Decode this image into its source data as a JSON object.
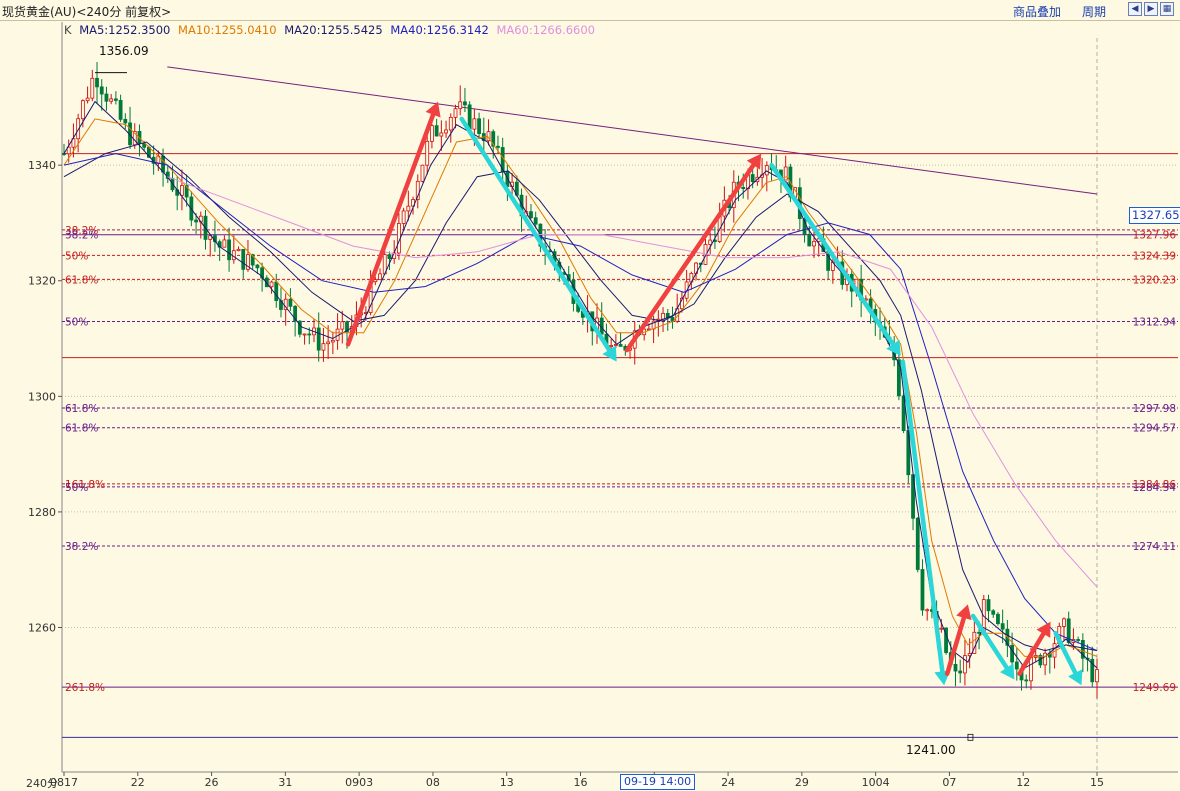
{
  "header": {
    "title": "现货黄金(AU)<240分 前复权>",
    "overlay_button": "商品叠加",
    "period_button": "周期",
    "nav_icons": [
      "arrow-left-icon",
      "arrow-right-icon",
      "split-icon"
    ]
  },
  "legend": {
    "k_label": "K",
    "items": [
      {
        "text": "MA5:1252.3500",
        "color": "#1a1a6e"
      },
      {
        "text": "MA10:1255.0410",
        "color": "#e07a00"
      },
      {
        "text": "MA20:1255.5425",
        "color": "#1a1a6e"
      },
      {
        "text": "MA40:1256.3142",
        "color": "#2020c0"
      },
      {
        "text": "MA60:1266.6600",
        "color": "#e090e0"
      }
    ]
  },
  "annotations": {
    "high": "1356.09",
    "low": "1241.00",
    "current_price": "1327.65",
    "period_label": "240分",
    "cursor_time": "09-19 14:00"
  },
  "chart_data": {
    "type": "candlestick",
    "ylim": [
      1235,
      1362
    ],
    "y_ticks": [
      1260,
      1280,
      1300,
      1320,
      1340
    ],
    "x_tick_labels": [
      "0817",
      "22",
      "26",
      "31",
      "0903",
      "08",
      "13",
      "16",
      "19",
      "24",
      "29",
      "1004",
      "07",
      "12",
      "15"
    ],
    "horizontal_lines": [
      {
        "price": 1342.0,
        "color": "#c81e1e",
        "style": "solid"
      },
      {
        "price": 1328.8,
        "color": "#b01e50",
        "style": "dashed"
      },
      {
        "price": 1327.96,
        "color": "#6a1e8a",
        "style": "solid"
      },
      {
        "price": 1324.39,
        "color": "#c81e1e",
        "style": "dashed"
      },
      {
        "price": 1320.23,
        "color": "#c81e1e",
        "style": "dashed"
      },
      {
        "price": 1312.94,
        "color": "#6a1e8a",
        "style": "dashed"
      },
      {
        "price": 1306.7,
        "color": "#c81e1e",
        "style": "solid"
      },
      {
        "price": 1297.98,
        "color": "#6a1e8a",
        "style": "dashed"
      },
      {
        "price": 1294.57,
        "color": "#6a1e8a",
        "style": "dashed"
      },
      {
        "price": 1284.86,
        "color": "#c81e1e",
        "style": "dashed"
      },
      {
        "price": 1284.34,
        "color": "#6a1e8a",
        "style": "dashed"
      },
      {
        "price": 1274.11,
        "color": "#6a1e8a",
        "style": "dashed"
      },
      {
        "price": 1249.69,
        "color": "#6a1e8a",
        "style": "solid"
      },
      {
        "price": 1241.0,
        "color": "#3a2a9a",
        "style": "solid"
      }
    ],
    "fib_labels_left": [
      {
        "text": "38.2%",
        "price": 1328.8,
        "color": "#c81e1e"
      },
      {
        "text": "38.2%",
        "price": 1327.96,
        "color": "#6a1e8a"
      },
      {
        "text": "50%",
        "price": 1324.39,
        "color": "#c81e1e"
      },
      {
        "text": "61.8%",
        "price": 1320.23,
        "color": "#c81e1e"
      },
      {
        "text": "50%",
        "price": 1312.94,
        "color": "#6a1e8a"
      },
      {
        "text": "61.8%",
        "price": 1297.98,
        "color": "#6a1e8a"
      },
      {
        "text": "61.8%",
        "price": 1294.57,
        "color": "#6a1e8a"
      },
      {
        "text": "161.8%",
        "price": 1284.86,
        "color": "#c81e1e"
      },
      {
        "text": "50%",
        "price": 1284.34,
        "color": "#6a1e8a"
      },
      {
        "text": "38.2%",
        "price": 1274.11,
        "color": "#6a1e8a"
      },
      {
        "text": "261.8%",
        "price": 1249.69,
        "color": "#c81e1e"
      }
    ],
    "price_labels_right": [
      {
        "text": "1327.96",
        "price": 1327.96,
        "color": "#c81e1e"
      },
      {
        "text": "1324.39",
        "price": 1324.39,
        "color": "#c81e1e"
      },
      {
        "text": "1320.23",
        "price": 1320.23,
        "color": "#c81e1e"
      },
      {
        "text": "1312.94",
        "price": 1312.94,
        "color": "#6a1e8a"
      },
      {
        "text": "1297.98",
        "price": 1297.98,
        "color": "#6a1e8a"
      },
      {
        "text": "1294.57",
        "price": 1294.57,
        "color": "#6a1e8a"
      },
      {
        "text": "1284.86",
        "price": 1284.86,
        "color": "#c81e1e"
      },
      {
        "text": "1284.34",
        "price": 1284.34,
        "color": "#6a1e8a"
      },
      {
        "text": "1274.11",
        "price": 1274.11,
        "color": "#6a1e8a"
      },
      {
        "text": "1249.69",
        "price": 1249.69,
        "color": "#c81e1e"
      }
    ],
    "trendline": {
      "from": [
        0.1,
        1357.0
      ],
      "to": [
        1.0,
        1335.0
      ],
      "color": "#7a1e7a"
    },
    "price_path": [
      [
        0.0,
        1342
      ],
      [
        0.03,
        1356
      ],
      [
        0.06,
        1346
      ],
      [
        0.1,
        1338
      ],
      [
        0.15,
        1326
      ],
      [
        0.19,
        1322
      ],
      [
        0.23,
        1312
      ],
      [
        0.25,
        1309
      ],
      [
        0.28,
        1312
      ],
      [
        0.32,
        1326
      ],
      [
        0.355,
        1345
      ],
      [
        0.38,
        1350
      ],
      [
        0.41,
        1345
      ],
      [
        0.45,
        1330
      ],
      [
        0.48,
        1322
      ],
      [
        0.51,
        1313
      ],
      [
        0.535,
        1307
      ],
      [
        0.56,
        1313
      ],
      [
        0.59,
        1314
      ],
      [
        0.62,
        1325
      ],
      [
        0.65,
        1336
      ],
      [
        0.68,
        1341
      ],
      [
        0.7,
        1338
      ],
      [
        0.72,
        1328
      ],
      [
        0.745,
        1322
      ],
      [
        0.77,
        1318
      ],
      [
        0.79,
        1311
      ],
      [
        0.805,
        1306
      ],
      [
        0.815,
        1292
      ],
      [
        0.83,
        1265
      ],
      [
        0.85,
        1258
      ],
      [
        0.862,
        1251
      ],
      [
        0.875,
        1255
      ],
      [
        0.89,
        1263
      ],
      [
        0.91,
        1258
      ],
      [
        0.93,
        1252
      ],
      [
        0.95,
        1256
      ],
      [
        0.97,
        1260
      ],
      [
        0.985,
        1255
      ],
      [
        1.0,
        1251
      ]
    ],
    "ma_lines": [
      {
        "name": "MA5",
        "color": "#1a1a6e",
        "points": [
          [
            0.0,
            1342
          ],
          [
            0.03,
            1351
          ],
          [
            0.06,
            1346
          ],
          [
            0.1,
            1338
          ],
          [
            0.15,
            1326
          ],
          [
            0.19,
            1321
          ],
          [
            0.23,
            1312
          ],
          [
            0.26,
            1310
          ],
          [
            0.29,
            1313
          ],
          [
            0.32,
            1325
          ],
          [
            0.355,
            1340
          ],
          [
            0.38,
            1347
          ],
          [
            0.41,
            1344
          ],
          [
            0.45,
            1331
          ],
          [
            0.48,
            1323
          ],
          [
            0.51,
            1314
          ],
          [
            0.535,
            1309
          ],
          [
            0.56,
            1312
          ],
          [
            0.59,
            1314
          ],
          [
            0.62,
            1324
          ],
          [
            0.65,
            1334
          ],
          [
            0.68,
            1339
          ],
          [
            0.7,
            1337
          ],
          [
            0.72,
            1329
          ],
          [
            0.745,
            1323
          ],
          [
            0.77,
            1318
          ],
          [
            0.79,
            1312
          ],
          [
            0.81,
            1305
          ],
          [
            0.825,
            1282
          ],
          [
            0.84,
            1265
          ],
          [
            0.86,
            1256
          ],
          [
            0.875,
            1254
          ],
          [
            0.89,
            1260
          ],
          [
            0.91,
            1258
          ],
          [
            0.93,
            1253
          ],
          [
            0.95,
            1255
          ],
          [
            0.97,
            1258
          ],
          [
            1.0,
            1253
          ]
        ]
      },
      {
        "name": "MA10",
        "color": "#e07a00",
        "points": [
          [
            0.0,
            1340
          ],
          [
            0.03,
            1348
          ],
          [
            0.06,
            1347
          ],
          [
            0.1,
            1340
          ],
          [
            0.15,
            1330
          ],
          [
            0.19,
            1323
          ],
          [
            0.23,
            1315
          ],
          [
            0.26,
            1311
          ],
          [
            0.29,
            1311
          ],
          [
            0.32,
            1320
          ],
          [
            0.355,
            1334
          ],
          [
            0.38,
            1344
          ],
          [
            0.41,
            1345
          ],
          [
            0.45,
            1335
          ],
          [
            0.48,
            1327
          ],
          [
            0.51,
            1317
          ],
          [
            0.535,
            1311
          ],
          [
            0.56,
            1311
          ],
          [
            0.59,
            1313
          ],
          [
            0.62,
            1320
          ],
          [
            0.65,
            1330
          ],
          [
            0.68,
            1337
          ],
          [
            0.7,
            1338
          ],
          [
            0.72,
            1332
          ],
          [
            0.745,
            1326
          ],
          [
            0.77,
            1320
          ],
          [
            0.79,
            1315
          ],
          [
            0.81,
            1309
          ],
          [
            0.825,
            1294
          ],
          [
            0.84,
            1275
          ],
          [
            0.86,
            1262
          ],
          [
            0.875,
            1257
          ],
          [
            0.89,
            1259
          ],
          [
            0.91,
            1259
          ],
          [
            0.93,
            1255
          ],
          [
            0.95,
            1255
          ],
          [
            0.97,
            1257
          ],
          [
            1.0,
            1255
          ]
        ]
      },
      {
        "name": "MA20",
        "color": "#1a1a6e",
        "points": [
          [
            0.0,
            1338
          ],
          [
            0.04,
            1342
          ],
          [
            0.08,
            1344
          ],
          [
            0.12,
            1338
          ],
          [
            0.16,
            1331
          ],
          [
            0.2,
            1325
          ],
          [
            0.24,
            1318
          ],
          [
            0.28,
            1313
          ],
          [
            0.31,
            1314
          ],
          [
            0.34,
            1320
          ],
          [
            0.37,
            1330
          ],
          [
            0.4,
            1338
          ],
          [
            0.43,
            1339
          ],
          [
            0.46,
            1334
          ],
          [
            0.49,
            1327
          ],
          [
            0.52,
            1320
          ],
          [
            0.55,
            1314
          ],
          [
            0.58,
            1313
          ],
          [
            0.61,
            1316
          ],
          [
            0.64,
            1324
          ],
          [
            0.67,
            1331
          ],
          [
            0.7,
            1335
          ],
          [
            0.73,
            1332
          ],
          [
            0.76,
            1326
          ],
          [
            0.79,
            1320
          ],
          [
            0.81,
            1314
          ],
          [
            0.83,
            1301
          ],
          [
            0.85,
            1285
          ],
          [
            0.87,
            1270
          ],
          [
            0.89,
            1262
          ],
          [
            0.91,
            1259
          ],
          [
            0.93,
            1257
          ],
          [
            0.95,
            1256
          ],
          [
            0.97,
            1257
          ],
          [
            1.0,
            1256
          ]
        ]
      },
      {
        "name": "MA40",
        "color": "#2020c0",
        "points": [
          [
            0.0,
            1340
          ],
          [
            0.05,
            1342
          ],
          [
            0.1,
            1340
          ],
          [
            0.15,
            1333
          ],
          [
            0.2,
            1326
          ],
          [
            0.25,
            1320
          ],
          [
            0.3,
            1318
          ],
          [
            0.35,
            1319
          ],
          [
            0.4,
            1323
          ],
          [
            0.45,
            1328
          ],
          [
            0.5,
            1326
          ],
          [
            0.55,
            1321
          ],
          [
            0.6,
            1318
          ],
          [
            0.65,
            1322
          ],
          [
            0.7,
            1328
          ],
          [
            0.74,
            1330
          ],
          [
            0.78,
            1328
          ],
          [
            0.81,
            1322
          ],
          [
            0.84,
            1305
          ],
          [
            0.87,
            1287
          ],
          [
            0.9,
            1275
          ],
          [
            0.93,
            1265
          ],
          [
            0.96,
            1259
          ],
          [
            1.0,
            1256
          ]
        ]
      },
      {
        "name": "MA60",
        "color": "#e090e0",
        "points": [
          [
            0.1,
            1338
          ],
          [
            0.16,
            1334
          ],
          [
            0.22,
            1330
          ],
          [
            0.28,
            1326
          ],
          [
            0.34,
            1324
          ],
          [
            0.4,
            1325
          ],
          [
            0.46,
            1328
          ],
          [
            0.52,
            1328
          ],
          [
            0.58,
            1326
          ],
          [
            0.64,
            1324
          ],
          [
            0.7,
            1324
          ],
          [
            0.75,
            1325
          ],
          [
            0.8,
            1322
          ],
          [
            0.84,
            1312
          ],
          [
            0.88,
            1297
          ],
          [
            0.92,
            1285
          ],
          [
            0.96,
            1275
          ],
          [
            1.0,
            1267
          ]
        ]
      }
    ],
    "arrows": [
      {
        "color": "#f04040",
        "from": [
          0.275,
          1309
        ],
        "to": [
          0.362,
          1351
        ]
      },
      {
        "color": "#2ad6d8",
        "from": [
          0.385,
          1348
        ],
        "to": [
          0.535,
          1306
        ]
      },
      {
        "color": "#f04040",
        "from": [
          0.545,
          1308
        ],
        "to": [
          0.675,
          1342
        ]
      },
      {
        "color": "#2ad6d8",
        "from": [
          0.685,
          1340
        ],
        "to": [
          0.81,
          1307
        ]
      },
      {
        "color": "#2ad6d8",
        "from": [
          0.812,
          1306
        ],
        "to": [
          0.852,
          1250
        ]
      },
      {
        "color": "#f04040",
        "from": [
          0.855,
          1252
        ],
        "to": [
          0.875,
          1264
        ]
      },
      {
        "color": "#2ad6d8",
        "from": [
          0.88,
          1262
        ],
        "to": [
          0.92,
          1251
        ]
      },
      {
        "color": "#f04040",
        "from": [
          0.925,
          1252
        ],
        "to": [
          0.955,
          1261
        ]
      },
      {
        "color": "#2ad6d8",
        "from": [
          0.96,
          1259
        ],
        "to": [
          0.985,
          1250
        ]
      }
    ]
  }
}
